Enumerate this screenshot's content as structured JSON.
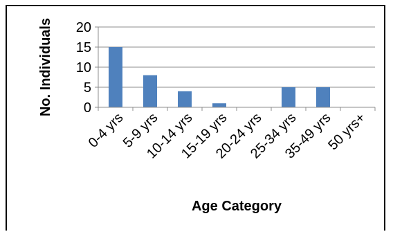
{
  "chart_data": {
    "type": "bar",
    "title": "",
    "xlabel": "Age Category",
    "ylabel": "No. Individuals",
    "categories": [
      "0-4 yrs",
      "5-9 yrs",
      "10-14 yrs",
      "15-19 yrs",
      "20-24 yrs",
      "25-34 yrs",
      "35-49 yrs",
      "50 yrs+"
    ],
    "values": [
      15,
      8,
      4,
      1,
      0,
      5,
      5,
      0
    ],
    "ylim": [
      0,
      20
    ],
    "yticks": [
      0,
      5,
      10,
      15,
      20
    ],
    "grid": true,
    "legend": "none",
    "colors": {
      "bar": "#4f81bd",
      "grid": "#8c8c8c",
      "axis": "#8c8c8c"
    }
  }
}
